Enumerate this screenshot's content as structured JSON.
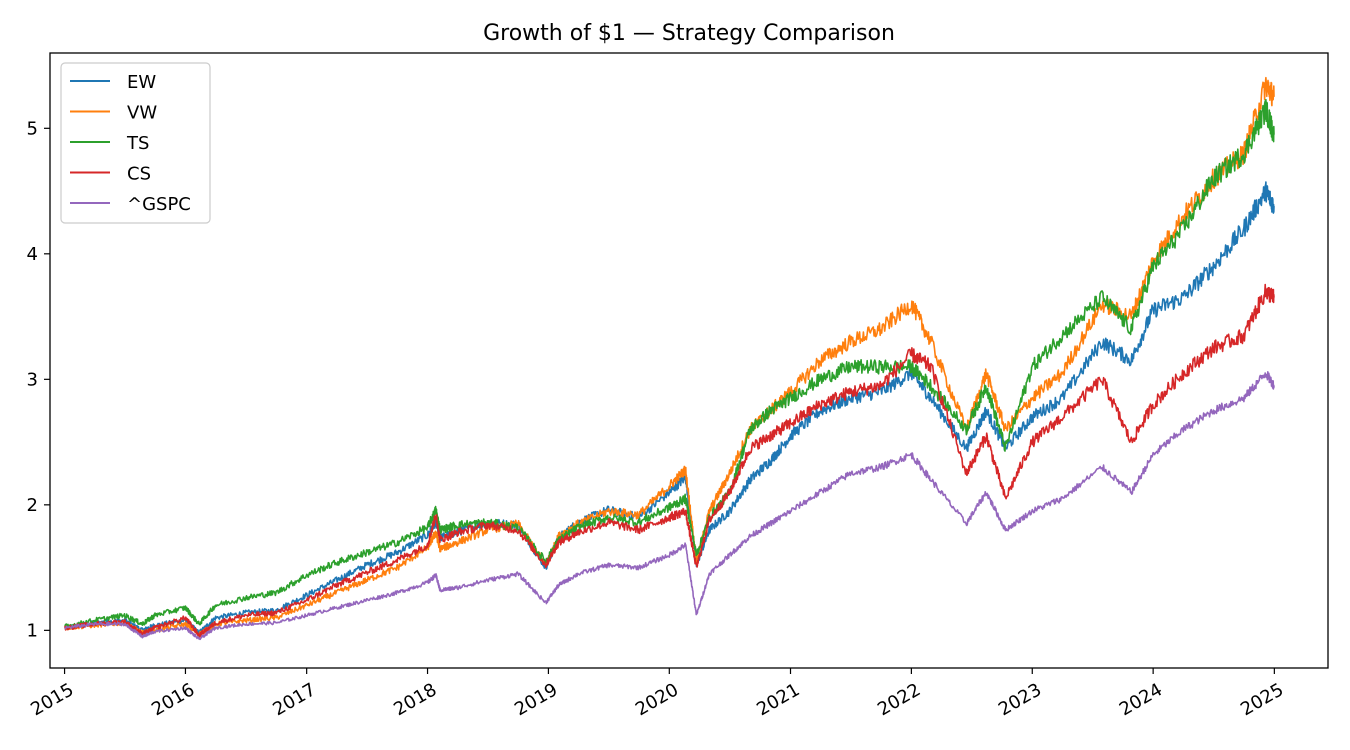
{
  "chart_data": {
    "type": "line",
    "title": "Growth of $1 — Strategy Comparison",
    "xlabel": "",
    "ylabel": "",
    "x_range": [
      "2014-11-18",
      "2025-06-12"
    ],
    "ylim": [
      0.7,
      5.6
    ],
    "x_ticks": [
      "2015",
      "2016",
      "2017",
      "2018",
      "2019",
      "2020",
      "2021",
      "2022",
      "2023",
      "2024",
      "2025"
    ],
    "y_ticks": [
      1,
      2,
      3,
      4,
      5
    ],
    "grid": false,
    "legend_position": "upper-left",
    "x": [
      "2015-01-02",
      "2015-04-01",
      "2015-07-01",
      "2015-08-24",
      "2015-10-01",
      "2016-01-01",
      "2016-02-11",
      "2016-04-01",
      "2016-07-01",
      "2016-10-01",
      "2017-01-01",
      "2017-04-01",
      "2017-07-01",
      "2017-10-01",
      "2018-01-01",
      "2018-01-26",
      "2018-02-08",
      "2018-04-01",
      "2018-07-01",
      "2018-10-01",
      "2018-12-24",
      "2019-02-01",
      "2019-04-01",
      "2019-07-01",
      "2019-10-01",
      "2020-01-01",
      "2020-02-19",
      "2020-03-23",
      "2020-05-01",
      "2020-07-01",
      "2020-09-01",
      "2020-11-01",
      "2021-01-01",
      "2021-04-01",
      "2021-07-01",
      "2021-10-01",
      "2022-01-01",
      "2022-03-01",
      "2022-06-16",
      "2022-08-15",
      "2022-10-12",
      "2023-01-01",
      "2023-04-01",
      "2023-07-31",
      "2023-10-27",
      "2024-01-01",
      "2024-04-01",
      "2024-07-01",
      "2024-10-01",
      "2024-12-06",
      "2024-12-31"
    ],
    "series": [
      {
        "name": "EW",
        "color": "#1f77b4",
        "values": [
          1.02,
          1.06,
          1.08,
          1.0,
          1.04,
          1.08,
          0.98,
          1.1,
          1.14,
          1.16,
          1.28,
          1.4,
          1.52,
          1.62,
          1.76,
          1.86,
          1.74,
          1.78,
          1.86,
          1.84,
          1.5,
          1.74,
          1.86,
          1.96,
          1.9,
          2.1,
          2.22,
          1.52,
          1.8,
          1.95,
          2.2,
          2.35,
          2.55,
          2.75,
          2.85,
          2.9,
          3.05,
          2.85,
          2.45,
          2.75,
          2.45,
          2.7,
          2.85,
          3.3,
          3.15,
          3.55,
          3.65,
          3.9,
          4.2,
          4.5,
          4.38
        ]
      },
      {
        "name": "VW",
        "color": "#ff7f0e",
        "values": [
          1.02,
          1.04,
          1.06,
          0.98,
          1.0,
          1.05,
          0.97,
          1.05,
          1.08,
          1.1,
          1.2,
          1.3,
          1.4,
          1.5,
          1.66,
          1.78,
          1.65,
          1.7,
          1.8,
          1.85,
          1.52,
          1.75,
          1.85,
          1.95,
          1.92,
          2.15,
          2.28,
          1.55,
          1.95,
          2.25,
          2.6,
          2.75,
          2.9,
          3.15,
          3.3,
          3.4,
          3.6,
          3.3,
          2.6,
          3.05,
          2.6,
          2.85,
          3.05,
          3.6,
          3.5,
          3.95,
          4.3,
          4.6,
          4.8,
          5.35,
          5.25
        ]
      },
      {
        "name": "TS",
        "color": "#2ca02c",
        "values": [
          1.03,
          1.08,
          1.12,
          1.05,
          1.12,
          1.18,
          1.05,
          1.2,
          1.26,
          1.3,
          1.44,
          1.54,
          1.62,
          1.7,
          1.82,
          1.96,
          1.8,
          1.84,
          1.86,
          1.82,
          1.55,
          1.72,
          1.82,
          1.9,
          1.86,
          1.98,
          2.05,
          1.6,
          1.9,
          2.1,
          2.6,
          2.75,
          2.85,
          3.0,
          3.1,
          3.1,
          3.1,
          2.95,
          2.6,
          2.95,
          2.45,
          3.1,
          3.35,
          3.65,
          3.4,
          3.9,
          4.2,
          4.6,
          4.8,
          5.15,
          4.95
        ]
      },
      {
        "name": "CS",
        "color": "#d62728",
        "values": [
          1.02,
          1.05,
          1.07,
          0.97,
          1.02,
          1.1,
          0.96,
          1.06,
          1.12,
          1.14,
          1.24,
          1.36,
          1.46,
          1.56,
          1.68,
          1.92,
          1.72,
          1.78,
          1.84,
          1.8,
          1.52,
          1.7,
          1.78,
          1.86,
          1.8,
          1.9,
          1.95,
          1.5,
          1.88,
          2.1,
          2.45,
          2.55,
          2.65,
          2.8,
          2.9,
          2.95,
          3.2,
          3.1,
          2.25,
          2.55,
          2.05,
          2.5,
          2.7,
          3.0,
          2.5,
          2.8,
          3.05,
          3.25,
          3.35,
          3.7,
          3.65
        ]
      },
      {
        "name": "^GSPC",
        "color": "#9467bd",
        "values": [
          1.02,
          1.05,
          1.05,
          0.95,
          0.99,
          1.02,
          0.93,
          1.02,
          1.05,
          1.06,
          1.12,
          1.18,
          1.24,
          1.3,
          1.38,
          1.44,
          1.32,
          1.34,
          1.4,
          1.45,
          1.22,
          1.36,
          1.45,
          1.52,
          1.5,
          1.6,
          1.68,
          1.12,
          1.45,
          1.6,
          1.75,
          1.85,
          1.95,
          2.1,
          2.25,
          2.3,
          2.4,
          2.2,
          1.85,
          2.1,
          1.8,
          1.95,
          2.05,
          2.3,
          2.1,
          2.4,
          2.6,
          2.75,
          2.85,
          3.05,
          2.95
        ]
      }
    ]
  }
}
